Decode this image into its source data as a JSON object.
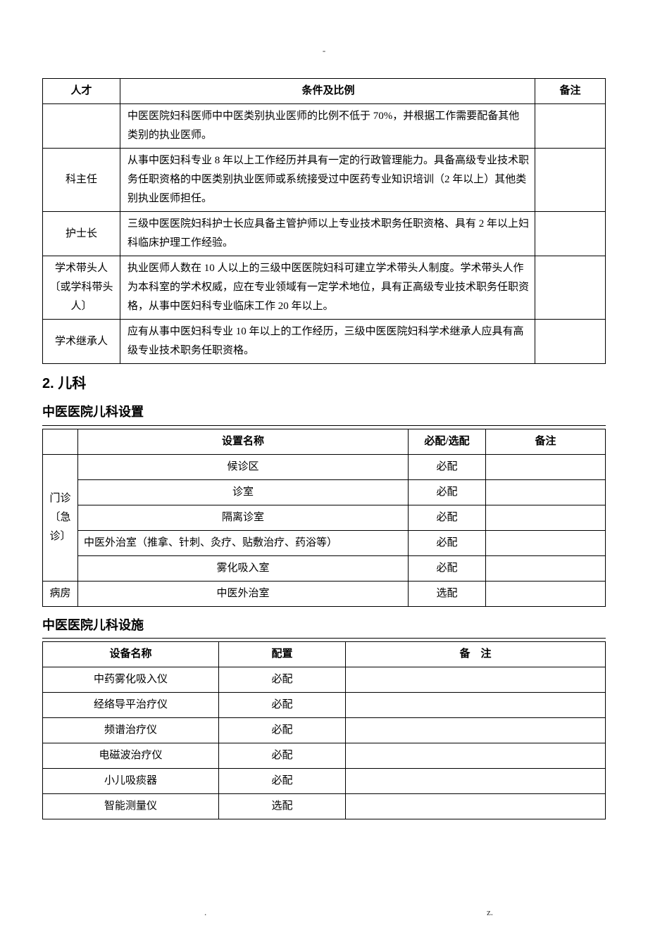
{
  "topMark": "-",
  "table1": {
    "headers": {
      "c1": "人才",
      "c2": "条件及比例",
      "c3": "备注"
    },
    "rows": [
      {
        "c1": "",
        "c2": "中医医院妇科医师中中医类别执业医师的比例不低于 70%，并根据工作需要配备其他类别的执业医师。",
        "c3": ""
      },
      {
        "c1": "科主任",
        "c2": "从事中医妇科专业 8 年以上工作经历并具有一定的行政管理能力。具备高级专业技术职务任职资格的中医类别执业医师或系统接受过中医药专业知识培训（2 年以上）其他类别执业医师担任。",
        "c3": ""
      },
      {
        "c1": "护士长",
        "c2": "三级中医医院妇科护士长应具备主管护师以上专业技术职务任职资格、具有 2 年以上妇科临床护理工作经验。",
        "c3": ""
      },
      {
        "c1": "学术带头人〔或学科带头人〕",
        "c2": "执业医师人数在 10 人以上的三级中医医院妇科可建立学术带头人制度。学术带头人作为本科室的学术权威，应在专业领域有一定学术地位，具有正高级专业技术职务任职资格，从事中医妇科专业临床工作 20 年以上。",
        "c3": ""
      },
      {
        "c1": "学术继承人",
        "c2": "应有从事中医妇科专业 10 年以上的工作经历，三级中医医院妇科学术继承人应具有高级专业技术职务任职资格。",
        "c3": ""
      }
    ]
  },
  "section2": "2. 儿科",
  "sub1": "中医医院儿科设置",
  "table2": {
    "headers": {
      "c1": "",
      "c2": "设置名称",
      "c3": "必配/选配",
      "c4": "备注"
    },
    "group1Label": "门诊〔急诊〕",
    "group1": [
      {
        "name": "候诊区",
        "config": "必配",
        "note": ""
      },
      {
        "name": "诊室",
        "config": "必配",
        "note": ""
      },
      {
        "name": "隔离诊室",
        "config": "必配",
        "note": ""
      },
      {
        "name": "中医外治室（推拿、针刺、灸疗、贴敷治疗、药浴等）",
        "config": "必配",
        "note": "",
        "left": true
      },
      {
        "name": "雾化吸入室",
        "config": "必配",
        "note": ""
      }
    ],
    "group2Label": "病房",
    "group2": [
      {
        "name": "中医外治室",
        "config": "选配",
        "note": ""
      }
    ]
  },
  "sub2": "中医医院儿科设施",
  "table3": {
    "headers": {
      "c1": "设备名称",
      "c2": "配置",
      "c3": "备　注"
    },
    "rows": [
      {
        "name": "中药雾化吸入仪",
        "config": "必配",
        "note": ""
      },
      {
        "name": "经络导平治疗仪",
        "config": "必配",
        "note": ""
      },
      {
        "name": "频谱治疗仪",
        "config": "必配",
        "note": ""
      },
      {
        "name": "电磁波治疗仪",
        "config": "必配",
        "note": ""
      },
      {
        "name": "小儿吸痰器",
        "config": "必配",
        "note": ""
      },
      {
        "name": "智能测量仪",
        "config": "选配",
        "note": ""
      }
    ]
  },
  "footer": {
    "a": ".",
    "b": "z."
  }
}
